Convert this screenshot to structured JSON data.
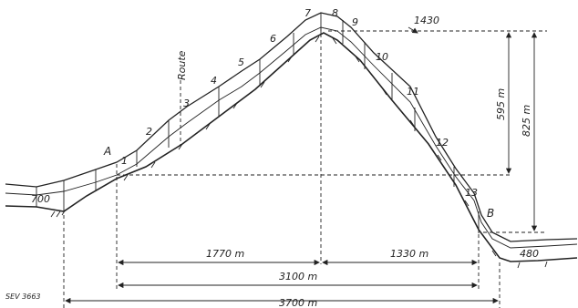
{
  "diagram": {
    "supports": [
      "1",
      "2",
      "3",
      "4",
      "5",
      "6",
      "7",
      "8",
      "9",
      "10",
      "11",
      "12",
      "13"
    ],
    "station_a": "A",
    "station_b": "B",
    "route_label": "Route",
    "elevations": {
      "left": "700",
      "peak": "1430",
      "right": "480"
    },
    "vertical_dims": {
      "upper": "595 m",
      "total": "825 m"
    },
    "horizontal_dims": {
      "left": "1770 m",
      "right": "1330 m",
      "ab": "3100 m",
      "total": "3700 m"
    },
    "reference": "SEV 3663"
  }
}
